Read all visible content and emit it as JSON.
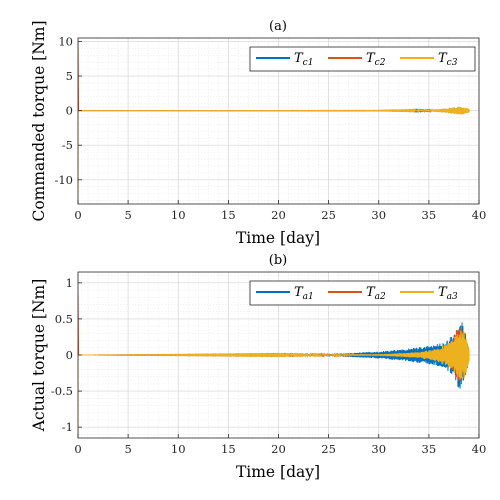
{
  "chart_data": [
    {
      "type": "line",
      "title": "(a)",
      "xlabel": "Time [day]",
      "ylabel": "Commanded torque [Nm]",
      "xlim": [
        0,
        40
      ],
      "ylim": [
        -13.5,
        10.5
      ],
      "xticks": [
        0,
        5,
        10,
        15,
        20,
        25,
        30,
        35,
        40
      ],
      "yticks": [
        10,
        5,
        0,
        -5,
        -10
      ],
      "grid": true,
      "minor_grid": true,
      "legend_position": "top-right",
      "series": [
        {
          "name": "T_c1",
          "legend_base": "T",
          "legend_sub": "c1",
          "color": "#0072BD",
          "initial_spike": [
            0,
            0
          ],
          "envelope": [
            [
              0,
              0
            ],
            [
              30,
              0.02
            ],
            [
              33,
              0.05
            ],
            [
              35,
              0.1
            ],
            [
              36.5,
              0.2
            ],
            [
              37.5,
              0.4
            ],
            [
              38.2,
              0.5
            ],
            [
              39,
              0.2
            ]
          ]
        },
        {
          "name": "T_c2",
          "legend_base": "T",
          "legend_sub": "c2",
          "color": "#D95319",
          "initial_spike": [
            0,
            9.8
          ],
          "envelope": [
            [
              0,
              0
            ],
            [
              30,
              0.01
            ],
            [
              35,
              0.05
            ],
            [
              37.5,
              0.3
            ],
            [
              38.2,
              0.4
            ],
            [
              39,
              0.15
            ]
          ]
        },
        {
          "name": "T_c3",
          "legend_base": "T",
          "legend_sub": "c3",
          "color": "#EDB120",
          "initial_spike": [
            -13.2,
            0
          ],
          "envelope": [
            [
              0,
              0
            ],
            [
              30,
              0.02
            ],
            [
              33,
              0.05
            ],
            [
              35,
              0.12
            ],
            [
              36.5,
              0.3
            ],
            [
              37.5,
              0.5
            ],
            [
              38.2,
              0.6
            ],
            [
              39,
              0.3
            ]
          ]
        }
      ]
    },
    {
      "type": "line",
      "title": "(b)",
      "xlabel": "Time [day]",
      "ylabel": "Actual torque [Nm]",
      "xlim": [
        0,
        40
      ],
      "ylim": [
        -1.15,
        1.15
      ],
      "xticks": [
        0,
        5,
        10,
        15,
        20,
        25,
        30,
        35,
        40
      ],
      "yticks": [
        1,
        0.5,
        0,
        -0.5,
        -1
      ],
      "grid": true,
      "minor_grid": true,
      "legend_position": "top-right",
      "series": [
        {
          "name": "T_a1",
          "legend_base": "T",
          "legend_sub": "a1",
          "color": "#0072BD",
          "initial_spike": [
            0,
            0
          ],
          "envelope": [
            [
              0,
              0
            ],
            [
              18,
              0.005
            ],
            [
              22,
              0.01
            ],
            [
              26,
              0.02
            ],
            [
              30,
              0.05
            ],
            [
              33,
              0.09
            ],
            [
              35,
              0.13
            ],
            [
              36.5,
              0.17
            ],
            [
              37.5,
              0.3
            ],
            [
              38,
              0.48
            ],
            [
              38.4,
              0.45
            ],
            [
              39,
              0.1
            ]
          ]
        },
        {
          "name": "T_a2",
          "legend_base": "T",
          "legend_sub": "a2",
          "color": "#D95319",
          "initial_spike": [
            0,
            0.85
          ],
          "envelope": [
            [
              0,
              0
            ],
            [
              30,
              0.01
            ],
            [
              35,
              0.04
            ],
            [
              37,
              0.12
            ],
            [
              38,
              0.42
            ],
            [
              38.5,
              0.3
            ],
            [
              39,
              0.08
            ]
          ]
        },
        {
          "name": "T_a3",
          "legend_base": "T",
          "legend_sub": "a3",
          "color": "#EDB120",
          "initial_spike": [
            -1.1,
            0
          ],
          "envelope": [
            [
              0,
              0
            ],
            [
              30,
              0.01
            ],
            [
              34,
              0.04
            ],
            [
              36,
              0.1
            ],
            [
              37.3,
              0.2
            ],
            [
              38,
              0.35
            ],
            [
              38.6,
              0.32
            ],
            [
              39,
              0.1
            ]
          ]
        }
      ]
    }
  ]
}
